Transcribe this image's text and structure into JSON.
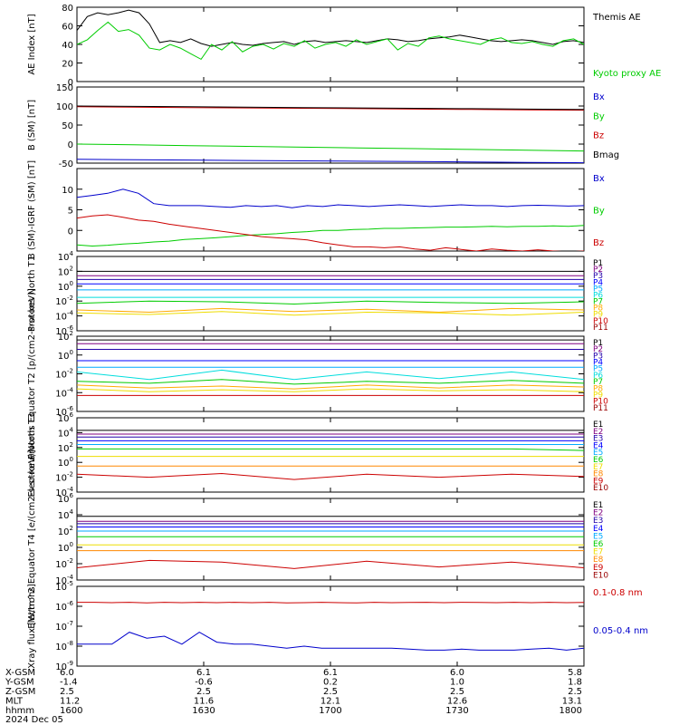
{
  "chart_data": [
    {
      "type": "line",
      "ylabel": "AE Index [nT]",
      "ylim": [
        0,
        80
      ],
      "yticks": [
        0,
        20,
        40,
        60,
        80
      ],
      "series": [
        {
          "name": "Themis AE",
          "color": "#000000",
          "values": [
            55,
            70,
            74,
            72,
            74,
            77,
            74,
            62,
            42,
            44,
            42,
            46,
            41,
            38,
            40,
            42,
            40,
            39,
            41,
            42,
            43,
            40,
            43,
            44,
            42,
            43,
            44,
            43,
            42,
            44,
            46,
            45,
            43,
            44,
            46,
            47,
            48,
            50,
            48,
            46,
            44,
            43,
            44,
            45,
            44,
            42,
            40,
            43,
            44,
            42
          ]
        },
        {
          "name": "Kyoto proxy AE",
          "color": "#00cc00",
          "values": [
            40,
            45,
            55,
            64,
            54,
            56,
            50,
            36,
            34,
            40,
            36,
            30,
            24,
            40,
            34,
            43,
            32,
            38,
            40,
            35,
            41,
            38,
            44,
            36,
            40,
            42,
            38,
            45,
            40,
            43,
            46,
            34,
            41,
            38,
            47,
            49,
            46,
            44,
            42,
            40,
            45,
            47,
            42,
            41,
            43,
            40,
            38,
            44,
            46,
            40
          ]
        }
      ]
    },
    {
      "type": "line",
      "ylabel": "B (SM) [nT]",
      "ylim": [
        -50,
        150
      ],
      "yticks": [
        -50,
        0,
        50,
        100,
        150
      ],
      "series": [
        {
          "name": "Bx",
          "color": "#0000cc",
          "values": [
            -40,
            -41,
            -42,
            -43,
            -44,
            -45,
            -46,
            -47,
            -48,
            -49
          ]
        },
        {
          "name": "By",
          "color": "#00cc00",
          "values": [
            0,
            -2,
            -4,
            -6,
            -8,
            -10,
            -12,
            -14,
            -16,
            -18
          ]
        },
        {
          "name": "Bz",
          "color": "#cc0000",
          "values": [
            98,
            97,
            96,
            95,
            94,
            93,
            92,
            91,
            90,
            89
          ]
        },
        {
          "name": "Bmag",
          "color": "#000000",
          "values": [
            100,
            99,
            98,
            97,
            96,
            95,
            94,
            93,
            92,
            91
          ]
        }
      ]
    },
    {
      "type": "line",
      "ylabel": "B (SM)-IGRF (SM) [nT]",
      "ylim": [
        -5,
        15
      ],
      "yticks": [
        0,
        5,
        10
      ],
      "series": [
        {
          "name": "Bx",
          "color": "#0000cc",
          "values": [
            8,
            8.5,
            9,
            10,
            9,
            6.5,
            6,
            6,
            6,
            5.8,
            5.6,
            6,
            5.8,
            6,
            5.5,
            6,
            5.8,
            6.2,
            6,
            5.8,
            6,
            6.2,
            6,
            5.8,
            6,
            6.2,
            6,
            6,
            5.8,
            6,
            6.1,
            6,
            5.9,
            6
          ]
        },
        {
          "name": "By",
          "color": "#00cc00",
          "values": [
            -3.5,
            -3.8,
            -3.6,
            -3.3,
            -3.1,
            -2.8,
            -2.6,
            -2.2,
            -2,
            -1.8,
            -1.5,
            -1.2,
            -1,
            -0.8,
            -0.5,
            -0.3,
            0,
            0,
            0.2,
            0.3,
            0.5,
            0.5,
            0.6,
            0.7,
            0.8,
            0.8,
            0.9,
            1,
            0.9,
            1,
            1,
            1.1,
            1,
            1.2
          ]
        },
        {
          "name": "Bz",
          "color": "#cc0000",
          "values": [
            3,
            3.5,
            3.8,
            3.2,
            2.5,
            2.2,
            1.5,
            1,
            0.5,
            0,
            -0.5,
            -1,
            -1.5,
            -1.8,
            -2,
            -2.3,
            -3,
            -3.5,
            -4,
            -4,
            -4.2,
            -4,
            -4.5,
            -4.8,
            -4.2,
            -4.6,
            -5,
            -4.5,
            -4.8,
            -5,
            -4.7,
            -5,
            -5.2,
            -5
          ]
        }
      ]
    },
    {
      "type": "line",
      "ylabel": "Protons North T1",
      "log": true,
      "ylim": [
        -6,
        4
      ],
      "yticks": [
        "10-6",
        "10-4",
        "10-2",
        "100",
        "102",
        "104"
      ],
      "series": [
        {
          "name": "P1",
          "color": "#000000",
          "values": [
            2,
            2,
            2,
            2,
            2,
            2,
            2,
            2
          ]
        },
        {
          "name": "P2",
          "color": "#800080",
          "values": [
            1.4,
            1.4,
            1.4,
            1.4,
            1.4,
            1.4,
            1.4,
            1.4
          ]
        },
        {
          "name": "P3",
          "color": "#2200aa",
          "values": [
            0.9,
            0.9,
            0.9,
            0.9,
            0.9,
            0.9,
            0.9,
            0.9
          ]
        },
        {
          "name": "P4",
          "color": "#0000ff",
          "values": [
            0.3,
            0.3,
            0.3,
            0.3,
            0.3,
            0.3,
            0.3,
            0.3
          ]
        },
        {
          "name": "P5",
          "color": "#00aaff",
          "values": [
            -0.5,
            -0.5,
            -0.5,
            -0.5,
            -0.5,
            -0.5,
            -0.5,
            -0.5
          ]
        },
        {
          "name": "P6",
          "color": "#00dddd",
          "values": [
            -1.5,
            -1.5,
            -1.5,
            -1.5,
            -1.5,
            -1.5,
            -1.5,
            -1.5
          ]
        },
        {
          "name": "P7",
          "color": "#00cc00",
          "values": [
            -2.3,
            -2,
            -2.1,
            -2.4,
            -2,
            -2.2,
            -2.3,
            -2.1
          ]
        },
        {
          "name": "P8",
          "color": "#ffaa00",
          "values": [
            -3.2,
            -3.5,
            -3,
            -3.4,
            -3.1,
            -3.5,
            -3,
            -3.2
          ]
        },
        {
          "name": "P9",
          "color": "#eedd00",
          "values": [
            -3.6,
            -3.8,
            -3.4,
            -3.9,
            -3.5,
            -3.6,
            -3.9,
            -3.5
          ]
        },
        {
          "name": "P10",
          "color": "#cc0000",
          "values": []
        },
        {
          "name": "P11",
          "color": "#990000",
          "values": []
        }
      ]
    },
    {
      "type": "line",
      "ylabel": "Protons Equator T2 [p/(cm2-s-sr-keV)]",
      "log": true,
      "ylim": [
        -6,
        2
      ],
      "yticks": [
        "10-6",
        "10-4",
        "10-2",
        "100",
        "102"
      ],
      "series": [
        {
          "name": "P1",
          "color": "#000000",
          "values": [
            1.6,
            1.6,
            1.6,
            1.6,
            1.6,
            1.6,
            1.6,
            1.6
          ]
        },
        {
          "name": "P2",
          "color": "#800080",
          "values": [
            1.2,
            1.2,
            1.2,
            1.2,
            1.2,
            1.2,
            1.2,
            1.2
          ]
        },
        {
          "name": "P3",
          "color": "#2200aa",
          "values": [
            0.6,
            0.6,
            0.6,
            0.6,
            0.6,
            0.6,
            0.6,
            0.6
          ]
        },
        {
          "name": "P4",
          "color": "#0000ff",
          "values": [
            -0.6,
            -0.6,
            -0.6,
            -0.6,
            -0.6,
            -0.6,
            -0.6,
            -0.6
          ]
        },
        {
          "name": "P5",
          "color": "#00aaff",
          "values": [
            -1.3,
            -1.3,
            -1.3,
            -1.3,
            -1.3,
            -1.3,
            -1.3,
            -1.3
          ]
        },
        {
          "name": "P6",
          "color": "#00dddd",
          "values": [
            -1.8,
            -2.6,
            -1.6,
            -2.6,
            -1.8,
            -2.5,
            -1.8,
            -2.6
          ]
        },
        {
          "name": "P7",
          "color": "#00cc00",
          "values": [
            -2.8,
            -3,
            -2.6,
            -3.1,
            -2.8,
            -3,
            -2.7,
            -3
          ]
        },
        {
          "name": "P8",
          "color": "#ffaa00",
          "values": [
            -3.2,
            -3.5,
            -3.3,
            -3.6,
            -3.2,
            -3.5,
            -3.2,
            -3.4
          ]
        },
        {
          "name": "P9",
          "color": "#eedd00",
          "values": [
            -3.6,
            -3.9,
            -3.7,
            -3.9,
            -3.6,
            -3.8,
            -3.7,
            -3.9
          ]
        },
        {
          "name": "P10",
          "color": "#cc0000",
          "values": [
            -4.3,
            -4.3,
            -4.3
          ]
        },
        {
          "name": "P11",
          "color": "#990000",
          "values": []
        }
      ]
    },
    {
      "type": "line",
      "ylabel": "Electrons North T3",
      "log": true,
      "ylim": [
        -4,
        6
      ],
      "yticks": [
        "10-4",
        "10-2",
        "100",
        "102",
        "104",
        "106"
      ],
      "series": [
        {
          "name": "E1",
          "color": "#000000",
          "values": [
            4.3,
            4.3,
            4.3,
            4.3,
            4.3,
            4.3,
            4.3,
            4.3
          ]
        },
        {
          "name": "E2",
          "color": "#800080",
          "values": [
            3.8,
            3.8,
            3.8,
            3.8,
            3.8,
            3.8,
            3.8,
            3.8
          ]
        },
        {
          "name": "E3",
          "color": "#2200aa",
          "values": [
            3.4,
            3.4,
            3.4,
            3.4,
            3.4,
            3.4,
            3.4,
            3.4
          ]
        },
        {
          "name": "E4",
          "color": "#0000ff",
          "values": [
            2.9,
            2.9,
            2.9,
            2.9,
            2.9,
            2.9,
            2.9,
            2.9
          ]
        },
        {
          "name": "E5",
          "color": "#00aaff",
          "values": [
            2.4,
            2.4,
            2.4,
            2.4,
            2.4,
            2.4,
            2.4,
            2.4
          ]
        },
        {
          "name": "E6",
          "color": "#00cc00",
          "values": [
            1.8,
            1.8,
            1.8,
            1.8,
            1.8,
            1.8,
            1.8,
            1.6
          ]
        },
        {
          "name": "E7",
          "color": "#eedd00",
          "values": [
            0.8,
            0.8,
            0.8,
            0.8,
            0.8,
            0.8,
            0.8,
            0.8
          ]
        },
        {
          "name": "E8",
          "color": "#ff8800",
          "values": [
            -0.5,
            -0.5,
            -0.5,
            -0.5,
            -0.5,
            -0.5,
            -0.5,
            -0.5
          ]
        },
        {
          "name": "E9",
          "color": "#cc0000",
          "values": [
            -1.6,
            -2,
            -1.5,
            -2.3,
            -1.6,
            -2,
            -1.6,
            -1.9
          ]
        },
        {
          "name": "E10",
          "color": "#990000",
          "values": []
        }
      ]
    },
    {
      "type": "line",
      "ylabel": "Electrons Equator T4 [e/(cm2-s-sr-keV)]",
      "log": true,
      "ylim": [
        -4,
        6
      ],
      "yticks": [
        "10-4",
        "10-2",
        "100",
        "102",
        "104",
        "106"
      ],
      "series": [
        {
          "name": "E1",
          "color": "#000000",
          "values": [
            3.8,
            3.8,
            3.8,
            3.8,
            3.8,
            3.8,
            3.8,
            3.8
          ]
        },
        {
          "name": "E2",
          "color": "#800080",
          "values": [
            3.2,
            3.2,
            3.2,
            3.2,
            3.2,
            3.2,
            3.2,
            3.2
          ]
        },
        {
          "name": "E3",
          "color": "#2200aa",
          "values": [
            2.9,
            2.9,
            2.9,
            2.9,
            2.9,
            2.9,
            2.9,
            2.9
          ]
        },
        {
          "name": "E4",
          "color": "#0000ff",
          "values": [
            2.5,
            2.5,
            2.5,
            2.5,
            2.5,
            2.5,
            2.5,
            2.5
          ]
        },
        {
          "name": "E5",
          "color": "#00aaff",
          "values": [
            2,
            2,
            2,
            2,
            2,
            2,
            2,
            2
          ]
        },
        {
          "name": "E6",
          "color": "#00cc00",
          "values": [
            1.3,
            1.3,
            1.3,
            1.3,
            1.3,
            1.3,
            1.3,
            1.3
          ]
        },
        {
          "name": "E7",
          "color": "#eedd00",
          "values": [
            0.3,
            0.3,
            0.3,
            0.3,
            0.3,
            0.3,
            0.3,
            0.3
          ]
        },
        {
          "name": "E8",
          "color": "#ff8800",
          "values": [
            -0.4,
            -0.4,
            -0.4,
            -0.4,
            -0.4,
            -0.4,
            -0.4,
            -0.4
          ]
        },
        {
          "name": "E9",
          "color": "#cc0000",
          "values": [
            -2.5,
            -1.6,
            -1.8,
            -2.6,
            -1.7,
            -2.4,
            -1.8,
            -2.5
          ]
        },
        {
          "name": "E10",
          "color": "#990000",
          "values": []
        }
      ]
    },
    {
      "type": "line",
      "ylabel": "Xray flux [W/m^2]",
      "log": true,
      "ylim": [
        -9,
        -5
      ],
      "yticks": [
        "10-9",
        "10-8",
        "10-7",
        "10-6",
        "10-5"
      ],
      "series": [
        {
          "name": "0.1-0.8 nm",
          "color": "#cc0000",
          "values": [
            -5.8,
            -5.8,
            -5.82,
            -5.8,
            -5.83,
            -5.8,
            -5.82,
            -5.8,
            -5.82,
            -5.8,
            -5.82,
            -5.8,
            -5.83,
            -5.82,
            -5.8,
            -5.82,
            -5.83,
            -5.8,
            -5.82,
            -5.81,
            -5.8,
            -5.82,
            -5.8,
            -5.81,
            -5.82,
            -5.8,
            -5.82,
            -5.8,
            -5.82,
            -5.81
          ]
        },
        {
          "name": "0.05-0.4 nm",
          "color": "#0000cc",
          "values": [
            -7.9,
            -7.9,
            -7.9,
            -7.3,
            -7.6,
            -7.5,
            -7.9,
            -7.3,
            -7.8,
            -7.9,
            -7.9,
            -8,
            -8.1,
            -8,
            -8.1,
            -8.1,
            -8.1,
            -8.1,
            -8.1,
            -8.15,
            -8.2,
            -8.2,
            -8.15,
            -8.2,
            -8.2,
            -8.2,
            -8.15,
            -8.1,
            -8.2,
            -8.1
          ]
        }
      ]
    }
  ],
  "x_axis": {
    "rows": [
      {
        "label": "X-GSM",
        "values": [
          "6.0",
          "6.1",
          "6.1",
          "6.0",
          "5.8"
        ]
      },
      {
        "label": "Y-GSM",
        "values": [
          "-1.4",
          "-0.6",
          "0.2",
          "1.0",
          "1.8"
        ]
      },
      {
        "label": "Z-GSM",
        "values": [
          "2.5",
          "2.5",
          "2.5",
          "2.5",
          "2.5"
        ]
      },
      {
        "label": "MLT",
        "values": [
          "11.2",
          "11.6",
          "12.1",
          "12.6",
          "13.1"
        ]
      },
      {
        "label": "hhmm",
        "values": [
          "1600",
          "1630",
          "1700",
          "1730",
          "1800"
        ]
      }
    ],
    "date": "2024 Dec 05"
  }
}
